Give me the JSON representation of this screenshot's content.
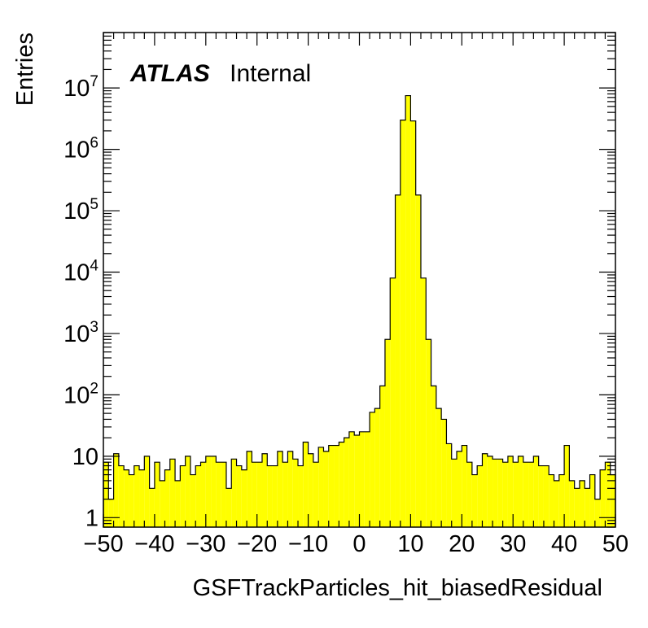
{
  "chart_data": {
    "type": "bar",
    "histtype": "step-filled",
    "fill_color": "#ffff00",
    "edge_color": "#000000",
    "log_y": true,
    "xlabel": "GSFTrackParticles_hit_biasedResidual",
    "ylabel": "Entries",
    "annotation": {
      "bold": "ATLAS",
      "normal": "Internal"
    },
    "xlim": [
      -50,
      50
    ],
    "ylim": [
      0.7,
      80000000
    ],
    "x_ticks": [
      {
        "v": -50,
        "label": "−50"
      },
      {
        "v": -40,
        "label": "−40"
      },
      {
        "v": -30,
        "label": "−30"
      },
      {
        "v": -20,
        "label": "−20"
      },
      {
        "v": -10,
        "label": "−10"
      },
      {
        "v": 0,
        "label": "0"
      },
      {
        "v": 10,
        "label": "10"
      },
      {
        "v": 20,
        "label": "20"
      },
      {
        "v": 30,
        "label": "30"
      },
      {
        "v": 40,
        "label": "40"
      },
      {
        "v": 50,
        "label": "50"
      }
    ],
    "y_ticks": [
      {
        "v": 1,
        "base": "1",
        "exp": ""
      },
      {
        "v": 10,
        "base": "10",
        "exp": ""
      },
      {
        "v": 100,
        "base": "10",
        "exp": "2"
      },
      {
        "v": 1000,
        "base": "10",
        "exp": "3"
      },
      {
        "v": 10000,
        "base": "10",
        "exp": "4"
      },
      {
        "v": 100000,
        "base": "10",
        "exp": "5"
      },
      {
        "v": 1000000,
        "base": "10",
        "exp": "6"
      },
      {
        "v": 10000000,
        "base": "10",
        "exp": "7"
      }
    ],
    "bin_width": 1,
    "bins_start": -50,
    "values": [
      8,
      2,
      11,
      7,
      6,
      5,
      7,
      6,
      10,
      3,
      8,
      4,
      6,
      9,
      4,
      7,
      10,
      5,
      7,
      8,
      10,
      10,
      8,
      8,
      3,
      9,
      7,
      6,
      12,
      8,
      8,
      11,
      7,
      7,
      12,
      8,
      12,
      9,
      7,
      17,
      11,
      8,
      14,
      12,
      15,
      15,
      17,
      20,
      25,
      22,
      25,
      25,
      52,
      60,
      140,
      800,
      8000,
      180000,
      3000000,
      7500000,
      2900000,
      180000,
      8000,
      800,
      140,
      60,
      40,
      16,
      9,
      12,
      15,
      8,
      5,
      7,
      11,
      10,
      9,
      9,
      8,
      10,
      8,
      10,
      8,
      8,
      10,
      7,
      7,
      5,
      4,
      5,
      15,
      4,
      3,
      4,
      3,
      5,
      2,
      6,
      8,
      5
    ]
  }
}
